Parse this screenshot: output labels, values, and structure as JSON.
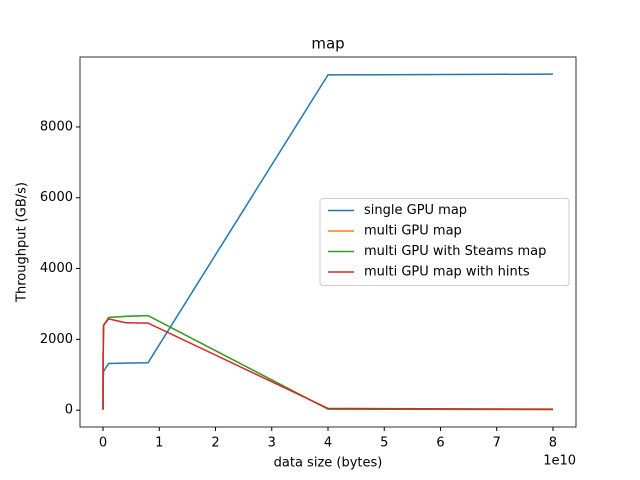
{
  "chart_data": {
    "type": "line",
    "title": "map",
    "xlabel": "data size (bytes)",
    "ylabel": "Throughput (GB/s)",
    "x_offset_label": "1e10",
    "x": [
      1e-05,
      0.0001,
      0.001,
      0.01,
      0.1,
      0.4,
      0.8,
      4,
      8
    ],
    "series": [
      {
        "name": "single GPU map",
        "color": "#1f77b4",
        "values": [
          10,
          100,
          800,
          1100,
          1320,
          1330,
          1340,
          9470,
          9490
        ]
      },
      {
        "name": "multi GPU map",
        "color": "#ff7f0e",
        "values": [
          20,
          200,
          1500,
          2400,
          2620,
          2650,
          2670,
          30,
          20
        ]
      },
      {
        "name": "multi GPU with Steams map",
        "color": "#2ca02c",
        "values": [
          20,
          200,
          1500,
          2400,
          2620,
          2650,
          2670,
          30,
          20
        ]
      },
      {
        "name": "multi GPU map with hints",
        "color": "#d62728",
        "values": [
          20,
          200,
          1500,
          2400,
          2580,
          2470,
          2460,
          50,
          30
        ]
      }
    ],
    "xlim": [
      -0.41,
      8.41
    ],
    "xticks": [
      0,
      1,
      2,
      3,
      4,
      5,
      6,
      7,
      8
    ],
    "ylim": [
      -475,
      9975
    ],
    "yticks": [
      0,
      2000,
      4000,
      6000,
      8000
    ],
    "legend": "center right"
  }
}
